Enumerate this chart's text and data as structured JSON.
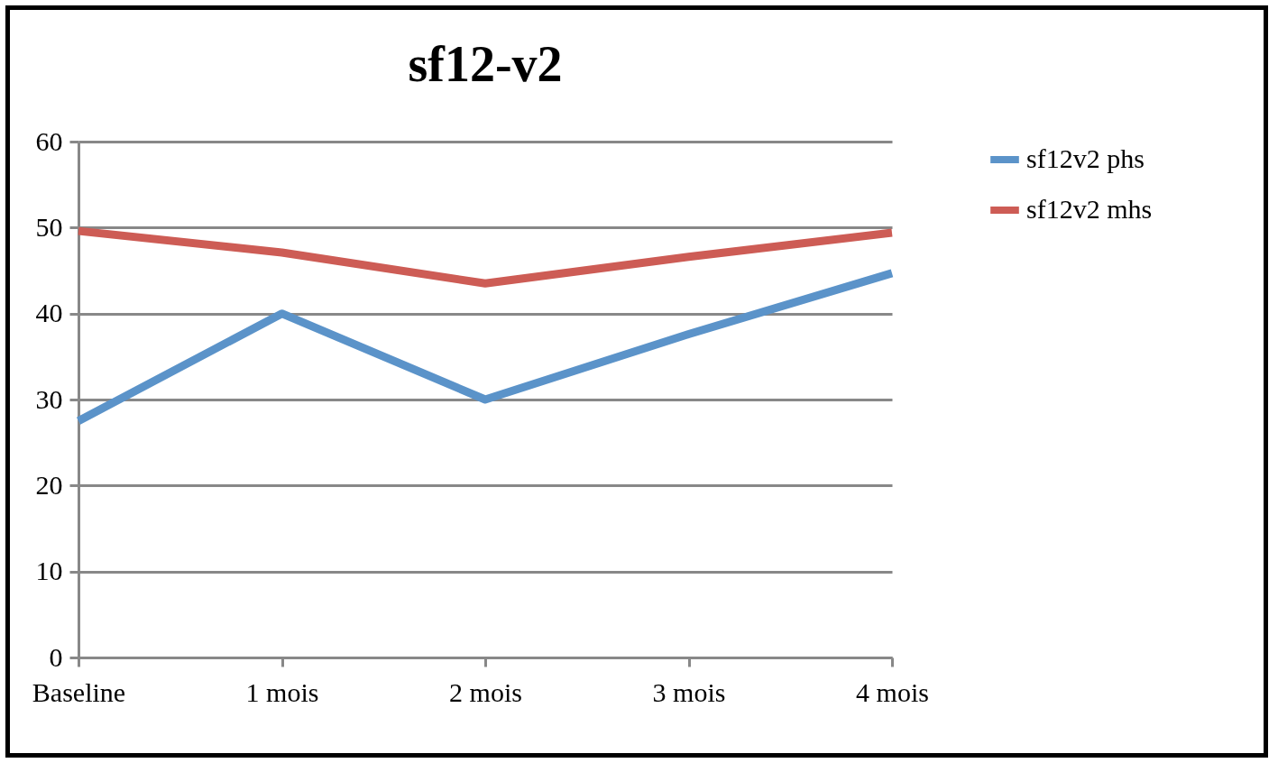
{
  "chart_data": {
    "type": "line",
    "title": "sf12-v2",
    "categories": [
      "Baseline",
      "1 mois",
      "2 mois",
      "3 mois",
      "4 mois"
    ],
    "series": [
      {
        "name": "sf12v2 phs",
        "color": "#5b93c9",
        "values": [
          27.5,
          40,
          30,
          37.6,
          44.7
        ]
      },
      {
        "name": "sf12v2 mhs",
        "color": "#cd5c55",
        "values": [
          49.6,
          47.1,
          43.5,
          46.6,
          49.4
        ]
      }
    ],
    "ylim": [
      0,
      60
    ],
    "yticks": [
      0,
      10,
      20,
      30,
      40,
      50,
      60
    ],
    "grid": "y",
    "legend": "right",
    "marker": "none",
    "line_style": "solid"
  }
}
